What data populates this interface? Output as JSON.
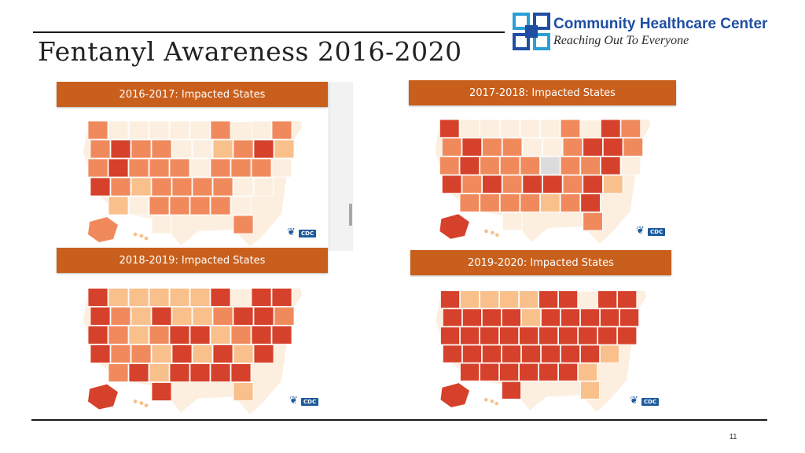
{
  "slide": {
    "title": "Fentanyl Awareness 2016-2020",
    "page_number": "11"
  },
  "logo": {
    "name": "Community Healthcare Center",
    "tagline": "Reaching Out To Everyone",
    "icon": "interlocking-squares-icon"
  },
  "panels": [
    {
      "title": "2016-2017: Impacted States",
      "badge": "CDC"
    },
    {
      "title": "2017-2018: Impacted States",
      "badge": "CDC"
    },
    {
      "title": "2018-2019: Impacted States",
      "badge": "CDC"
    },
    {
      "title": "2019-2020: Impacted States",
      "badge": "CDC"
    }
  ],
  "colors": {
    "header_orange": "#c95f1c",
    "level_high": "#d6412b",
    "level_mid": "#f08a5d",
    "level_low": "#f9c08c",
    "level_none": "#fcefe0",
    "level_unknown": "#dcdcdc"
  }
}
